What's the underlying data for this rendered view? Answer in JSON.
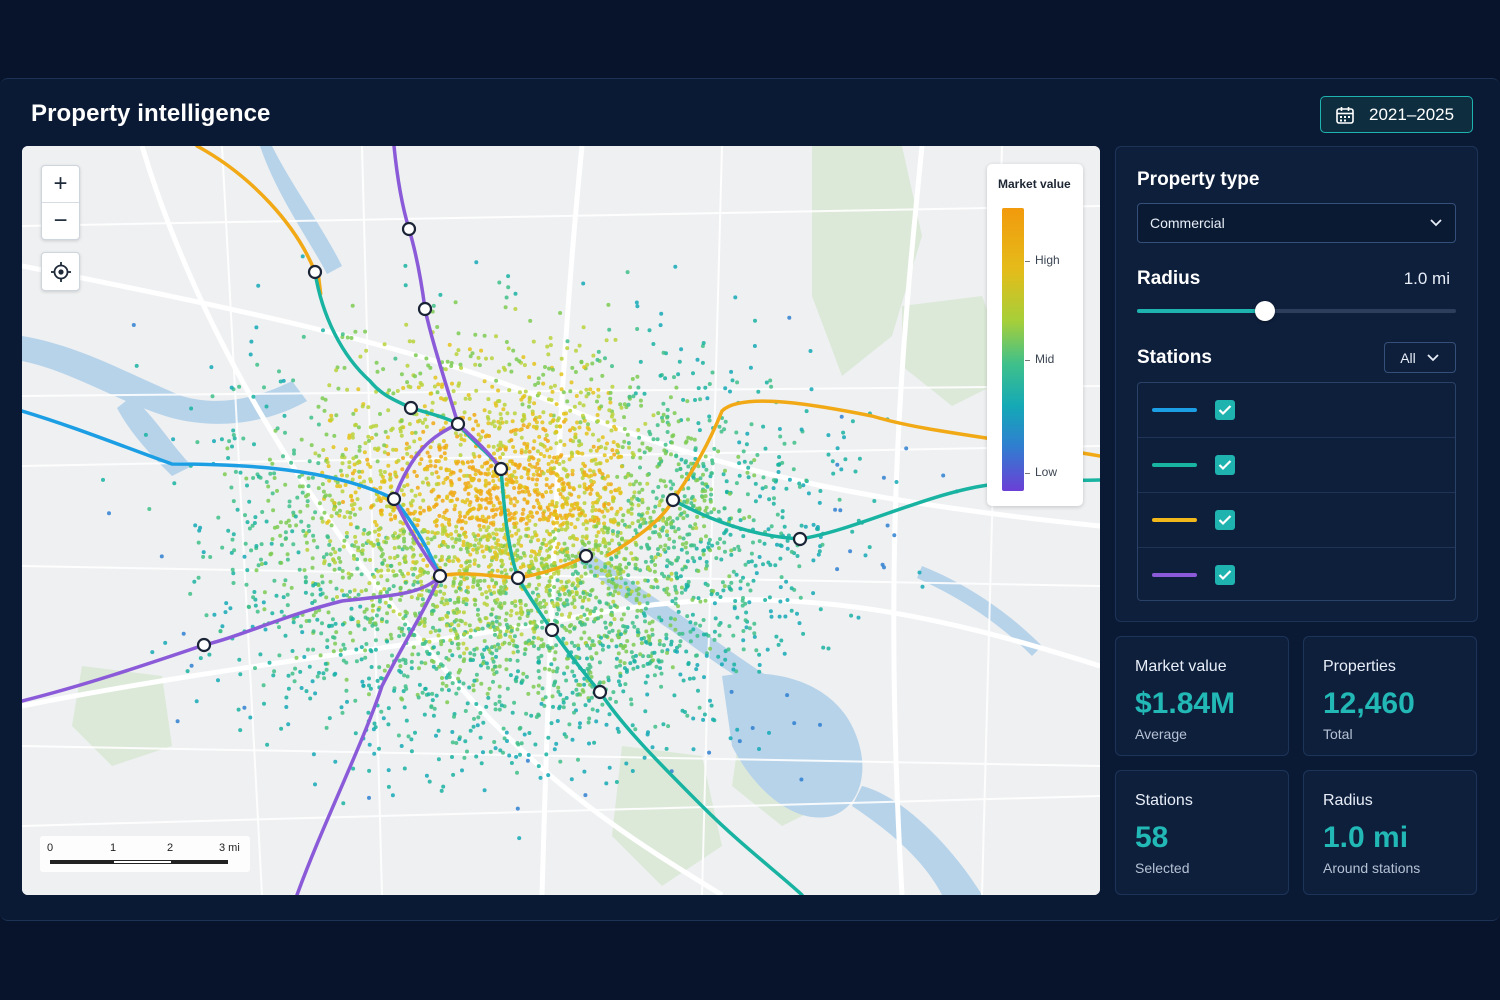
{
  "app": {
    "title": "Property intelligence"
  },
  "date_range": {
    "label": "2021–2025",
    "icon": "calendar-icon"
  },
  "map": {
    "controls": {
      "zoom_in": "+",
      "zoom_out": "−",
      "zoom_in_icon": "plus-icon",
      "zoom_out_icon": "minus-icon",
      "locate_icon": "crosshair-icon"
    },
    "legend": {
      "title": "Market value",
      "high": "High",
      "mid": "Mid",
      "low": "Low"
    },
    "scale": {
      "labels": [
        "0",
        "1",
        "2",
        "3 mi"
      ]
    },
    "lines": [
      {
        "color": "#f2a916"
      },
      {
        "color": "#19b3a2"
      },
      {
        "color": "#1b9ee3"
      },
      {
        "color": "#8a5ad8"
      }
    ]
  },
  "filters": {
    "property_type": {
      "label": "Property type",
      "selected": "Commercial"
    },
    "radius": {
      "label": "Radius",
      "value": "1.0 mi",
      "fraction": 0.4
    },
    "stations": {
      "label": "Stations",
      "filter": "All",
      "items": [
        {
          "color": "#1b9ee3",
          "checked": true
        },
        {
          "color": "#19b3a2",
          "checked": true
        },
        {
          "color": "#f2b71a",
          "checked": true
        },
        {
          "color": "#8a5ad8",
          "checked": true
        }
      ]
    }
  },
  "stats": [
    {
      "label": "Market value",
      "value": "$1.84M",
      "sub": "Average"
    },
    {
      "label": "Properties",
      "value": "12,460",
      "sub": "Total"
    },
    {
      "label": "Stations",
      "value": "58",
      "sub": "Selected"
    },
    {
      "label": "Radius",
      "value": "1.0 mi",
      "sub": "Around stations"
    }
  ],
  "colors": {
    "accent": "#1fb3b0",
    "background": "#08142b",
    "panel": "#0e1f3c"
  }
}
